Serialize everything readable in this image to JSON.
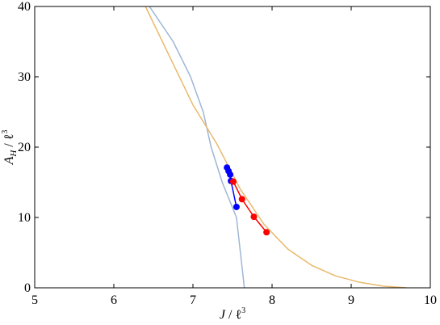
{
  "chart_data": {
    "type": "line",
    "xlabel": [
      "J",
      " / ℓ",
      "3"
    ],
    "ylabel": [
      "A",
      "H",
      " / ℓ",
      "3"
    ],
    "xlim": [
      5,
      10
    ],
    "ylim": [
      0,
      40
    ],
    "xticks": [
      5,
      6,
      7,
      8,
      9,
      10
    ],
    "yticks": [
      0,
      10,
      20,
      30,
      40
    ],
    "grid": false,
    "series": [
      {
        "color": "#9fb6d6",
        "markers": false,
        "x": [
          6.45,
          6.75,
          6.97,
          7.13,
          7.23,
          7.37,
          7.55,
          7.6,
          7.64,
          7.65
        ],
        "values": [
          40,
          35,
          30,
          25,
          20,
          15,
          10,
          5,
          1,
          0
        ]
      },
      {
        "color": "#e9b96c",
        "markers": false,
        "x": [
          6.4,
          6.7,
          7.0,
          7.3,
          7.6,
          7.9,
          8.2,
          8.5,
          8.8,
          9.1,
          9.4,
          9.7
        ],
        "values": [
          40,
          33,
          26,
          20.5,
          14,
          9,
          5.5,
          3.2,
          1.7,
          0.8,
          0.25,
          0
        ]
      },
      {
        "color": "#0000ff",
        "markers": true,
        "x": [
          7.43,
          7.45,
          7.47,
          7.48,
          7.55
        ],
        "values": [
          17.1,
          16.6,
          16.1,
          15.2,
          11.5
        ]
      },
      {
        "color": "#ff0000",
        "markers": true,
        "x": [
          7.51,
          7.62,
          7.77,
          7.93
        ],
        "values": [
          15.1,
          12.6,
          10.1,
          7.9
        ]
      }
    ]
  }
}
